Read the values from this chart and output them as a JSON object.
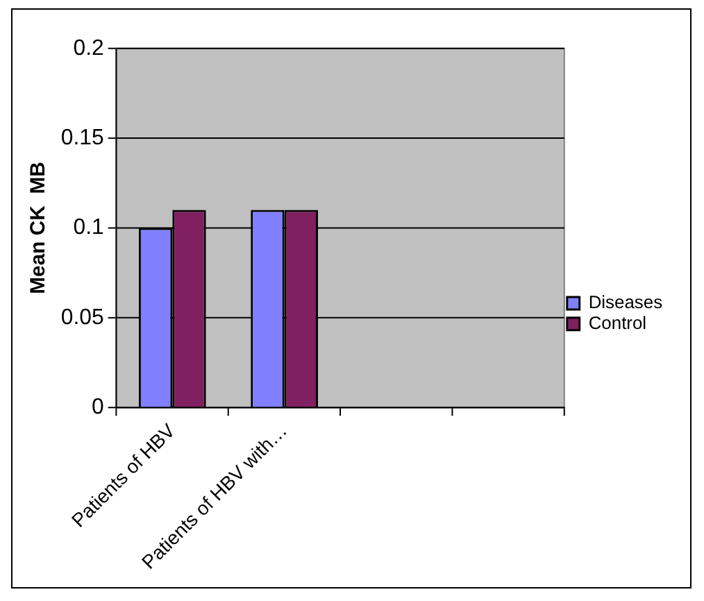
{
  "chart_data": {
    "type": "bar",
    "ylabel": "Mean CK  MB",
    "categories": [
      "Patients of HBV",
      "Patients of HBV with…",
      null,
      null
    ],
    "series": [
      {
        "name": "Diseases",
        "color": "#8080ff",
        "values": [
          0.1,
          0.11,
          null,
          null
        ]
      },
      {
        "name": "Control",
        "color": "#802060",
        "values": [
          0.11,
          0.11,
          null,
          null
        ]
      }
    ],
    "ylim": [
      0,
      0.2
    ],
    "yticks": [
      0,
      0.05,
      0.1,
      0.15,
      0.2
    ],
    "grid": "y",
    "legend": "right"
  }
}
